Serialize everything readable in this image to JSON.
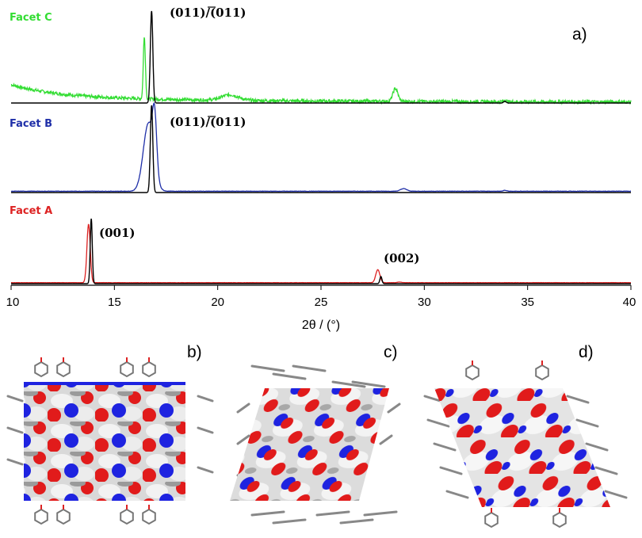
{
  "chart_data": {
    "type": "line",
    "title": "",
    "xlabel": "2θ / (°)",
    "ylabel": "",
    "xlim": [
      10,
      40
    ],
    "xticks": [
      "10",
      "15",
      "20",
      "25",
      "30",
      "35",
      "40"
    ],
    "grid": false,
    "panel_label": "a)",
    "colors": {
      "facet_c": "#33dd33",
      "facet_b": "#1f2fa8",
      "facet_a": "#dd2222",
      "simulated": "#000000"
    },
    "series": [
      {
        "name": "Facet C",
        "color": "#33dd33",
        "baseline": "noisy",
        "peaks": [
          {
            "x": 16.45,
            "height": 0.68,
            "width": 0.05
          },
          {
            "x": 20.6,
            "height": 0.06,
            "width": 0.4
          },
          {
            "x": 28.6,
            "height": 0.14,
            "width": 0.12
          },
          {
            "x": 33.9,
            "height": 0.015,
            "width": 0.08
          }
        ],
        "simulated_peaks": [
          {
            "x": 16.8,
            "height": 1.0,
            "width": 0.06
          },
          {
            "x": 33.9,
            "height": 0.02,
            "width": 0.06
          }
        ]
      },
      {
        "name": "Facet B",
        "color": "#1f2fa8",
        "baseline": "flat",
        "peaks": [
          {
            "x": 16.65,
            "height": 0.78,
            "width": 0.25
          },
          {
            "x": 16.95,
            "height": 0.6,
            "width": 0.1
          },
          {
            "x": 29.0,
            "height": 0.03,
            "width": 0.15
          },
          {
            "x": 33.9,
            "height": 0.01,
            "width": 0.08
          }
        ],
        "simulated_peaks": [
          {
            "x": 16.8,
            "height": 1.0,
            "width": 0.06
          }
        ]
      },
      {
        "name": "Facet A",
        "color": "#dd2222",
        "baseline": "flat",
        "peaks": [
          {
            "x": 13.75,
            "height": 0.9,
            "width": 0.08
          },
          {
            "x": 27.75,
            "height": 0.2,
            "width": 0.1
          },
          {
            "x": 28.8,
            "height": 0.01,
            "width": 0.1
          }
        ],
        "simulated_peaks": [
          {
            "x": 13.88,
            "height": 1.0,
            "width": 0.05
          },
          {
            "x": 27.9,
            "height": 0.11,
            "width": 0.05
          }
        ]
      }
    ],
    "annotations": [
      {
        "series": "Facet C",
        "text": "(011)/(011)",
        "x": 16.8
      },
      {
        "series": "Facet B",
        "text": "(011)/(011)",
        "x": 16.8
      },
      {
        "series": "Facet A",
        "text": "(001)",
        "x": 13.88
      },
      {
        "series": "Facet A",
        "text": "(002)",
        "x": 27.9
      }
    ]
  },
  "structure_panels": [
    {
      "label": "b)"
    },
    {
      "label": "c)"
    },
    {
      "label": "d)"
    }
  ]
}
